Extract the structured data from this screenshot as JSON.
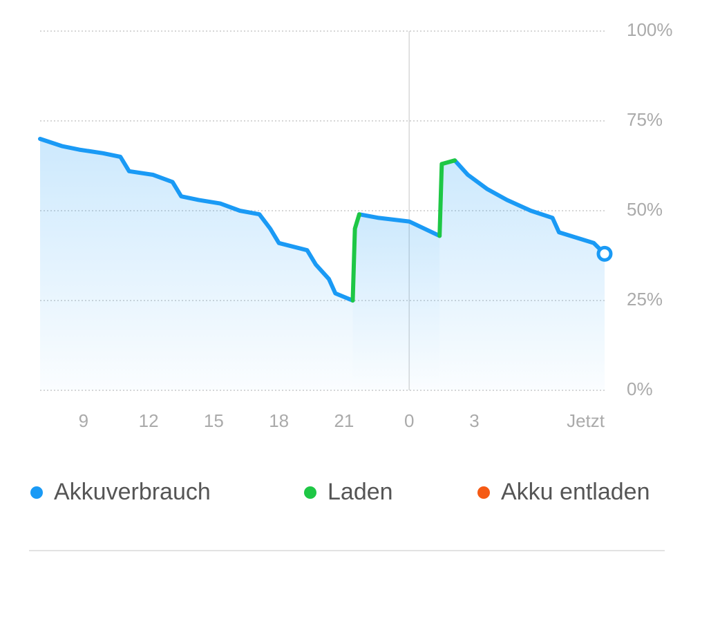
{
  "chart_data": {
    "type": "line",
    "x": [
      7.0,
      8.0,
      8.8,
      9.9,
      10.7,
      11.1,
      12.2,
      13.1,
      13.5,
      14.3,
      15.3,
      16.2,
      17.1,
      17.6,
      18.0,
      19.3,
      19.7,
      20.3,
      20.6,
      21.4,
      21.5,
      21.7,
      22.6,
      24.0,
      25.4,
      25.5,
      26.1,
      26.7,
      27.6,
      28.5,
      29.6,
      30.6,
      30.9,
      32.5,
      33.0
    ],
    "series": [
      {
        "name": "Akkuverbrauch",
        "color": "#1a9af5",
        "values": [
          70,
          68,
          67,
          66,
          65,
          61,
          60,
          58,
          54,
          53,
          52,
          50,
          49,
          45,
          41,
          39,
          35,
          31,
          27,
          25,
          null,
          49,
          48,
          47,
          43,
          null,
          64,
          60,
          56,
          53,
          50,
          48,
          44,
          41,
          38
        ]
      },
      {
        "name": "Laden",
        "color": "#1ec745",
        "values": [
          null,
          null,
          null,
          null,
          null,
          null,
          null,
          null,
          null,
          null,
          null,
          null,
          null,
          null,
          null,
          null,
          null,
          null,
          null,
          25,
          45,
          49,
          null,
          null,
          43,
          63,
          64,
          null,
          null,
          null,
          null,
          null,
          null,
          null,
          null
        ]
      },
      {
        "name": "Akku entladen",
        "color": "#f55a14",
        "values": [
          null,
          null,
          null,
          null,
          null,
          null,
          null,
          null,
          null,
          null,
          null,
          null,
          null,
          null,
          null,
          null,
          null,
          null,
          null,
          null,
          null,
          null,
          null,
          null,
          null,
          null,
          null,
          null,
          null,
          null,
          null,
          null,
          null,
          null,
          null
        ]
      }
    ],
    "xlim": [
      7,
      33
    ],
    "xticks": [
      9,
      12,
      15,
      18,
      21,
      {
        "value": 24,
        "label": "0"
      },
      {
        "value": 27,
        "label": "3"
      },
      {
        "value": 33,
        "label": "Jetzt"
      }
    ],
    "ylim": [
      0,
      100
    ],
    "yticks": [
      {
        "value": 0,
        "label": "0%"
      },
      {
        "value": 25,
        "label": "25%"
      },
      {
        "value": 50,
        "label": "50%"
      },
      {
        "value": 75,
        "label": "75%"
      },
      {
        "value": 100,
        "label": "100%"
      }
    ],
    "grid": true
  }
}
